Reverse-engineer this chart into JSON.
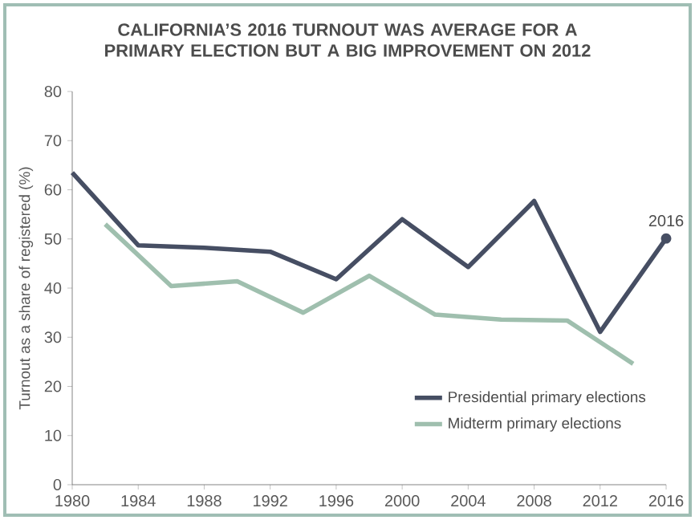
{
  "chart_data": {
    "type": "line",
    "title": "CALIFORNIA’S 2016 TURNOUT WAS AVERAGE FOR A PRIMARY ELECTION BUT A BIG IMPROVEMENT ON 2012",
    "ylabel": "Turnout as a share of registered (%)",
    "xlim": [
      1980,
      2016
    ],
    "xticks": [
      1980,
      1984,
      1988,
      1992,
      1996,
      2000,
      2004,
      2008,
      2012,
      2016
    ],
    "ylim": [
      0,
      80
    ],
    "yticks": [
      0,
      10,
      20,
      30,
      40,
      50,
      60,
      70,
      80
    ],
    "grid": false,
    "legend": "bottom right",
    "annotations": [
      {
        "text": "2016",
        "x": 2016,
        "y": 50.1
      }
    ],
    "series": [
      {
        "name": "Presidential primary elections",
        "color": "#464e63",
        "x": [
          1980,
          1984,
          1988,
          1992,
          1996,
          2000,
          2004,
          2008,
          2012,
          2016
        ],
        "values": [
          63.5,
          48.7,
          48.2,
          47.4,
          41.8,
          54,
          44.3,
          57.7,
          31.1,
          50.1
        ]
      },
      {
        "name": "Midterm primary elections",
        "color": "#9fbfae",
        "x": [
          1982,
          1986,
          1990,
          1994,
          1998,
          2002,
          2006,
          2010,
          2014
        ],
        "values": [
          53,
          40.4,
          41.4,
          35,
          42.5,
          34.6,
          33.6,
          33.4,
          24.6
        ]
      }
    ]
  }
}
